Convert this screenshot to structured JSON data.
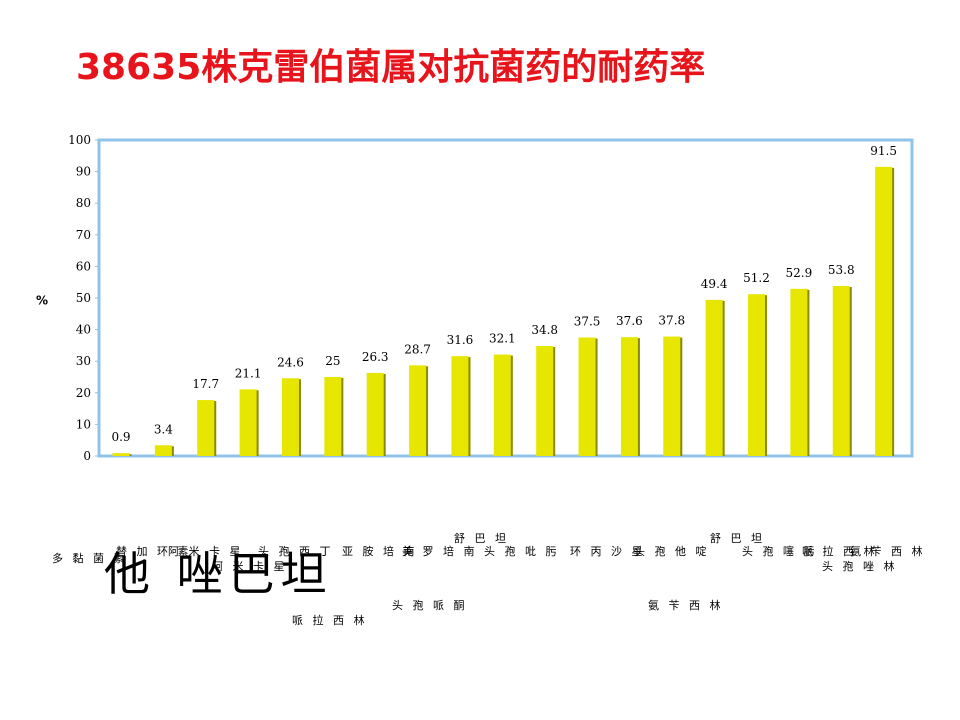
{
  "page": {
    "title": "38635株克雷伯菌属对抗菌药的耐药率",
    "big_label": "他 唑巴坦"
  },
  "chart_data": {
    "type": "bar",
    "title": "38635株克雷伯菌属对抗菌药的耐药率",
    "ylabel": "%",
    "xlabel": "",
    "ylim": [
      0,
      100
    ],
    "yticks": [
      0,
      10,
      20,
      30,
      40,
      50,
      60,
      70,
      80,
      90,
      100
    ],
    "values": [
      0.9,
      3.4,
      17.7,
      21.1,
      24.6,
      25,
      26.3,
      28.7,
      31.6,
      32.1,
      34.8,
      37.5,
      37.6,
      37.8,
      49.4,
      51.2,
      52.9,
      53.8,
      91.5
    ],
    "value_labels": [
      "0.9",
      "3.4",
      "17.7",
      "21.1",
      "24.6",
      "25",
      "26.3",
      "28.7",
      "31.6",
      "32.1",
      "34.8",
      "37.5",
      "37.6",
      "37.8",
      "49.4",
      "51.2",
      "52.9",
      "53.8",
      "91.5"
    ],
    "bar_color": "#e6e600",
    "bar_shadow": "#8a8a00",
    "frame_color": "#8fc4e8",
    "grid": false,
    "category_texts": [
      "多 黏 菌 素",
      "替 加 环 素",
      "阿 米 卡 星",
      "头 孢 西 丁",
      "阿 米 卡 星",
      "哌 拉 西 林",
      "舒 巴 坦",
      "亚 胺 培 南",
      "美 罗 培 南",
      "头 孢 哌 酮",
      "头 孢 吡 肟",
      "环 丙 沙 星",
      "头 孢 他 啶",
      "氨 苄 西 林",
      "舒 巴 坦",
      "头 孢 噻 肟",
      "哌 拉 西 林",
      "头 孢 唑 林",
      "氨 苄 西 林"
    ]
  }
}
